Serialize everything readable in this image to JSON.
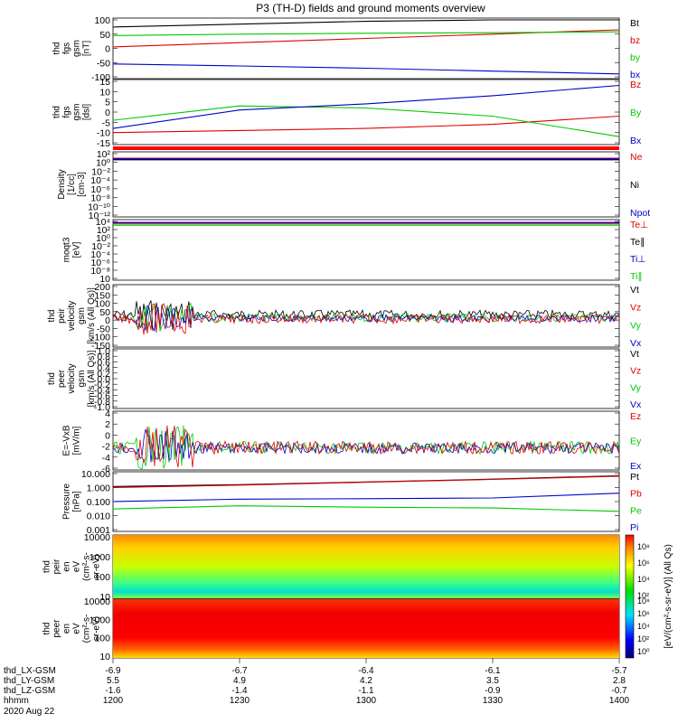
{
  "title": "P3 (TH-D) fields and ground moments overview",
  "colors": {
    "black": "#000000",
    "red": "#e00000",
    "green": "#00c800",
    "blue": "#0000c8"
  },
  "panels": [
    {
      "id": "fgs-gsm",
      "ylabel": [
        "thd",
        "fgs",
        "gsm",
        "[nT]"
      ],
      "ticks": [
        "100",
        "50",
        "0",
        "-50",
        "-100"
      ],
      "ylim": [
        -100,
        100
      ],
      "legend": [
        {
          "label": "Bt",
          "color": "black"
        },
        {
          "label": "bz",
          "color": "red"
        },
        {
          "label": "by",
          "color": "green"
        },
        {
          "label": "bx",
          "color": "blue"
        }
      ]
    },
    {
      "id": "fgs-dsl",
      "ylabel": [
        "thd",
        "fgs",
        "gsm",
        "[dsl]"
      ],
      "ticks": [
        "15",
        "10",
        "5",
        "0",
        "-5",
        "-10",
        "-15"
      ],
      "ylim": [
        -15,
        15
      ],
      "legend": [
        {
          "label": "Bz",
          "color": "red"
        },
        {
          "label": "By",
          "color": "green"
        },
        {
          "label": "Bx",
          "color": "blue"
        }
      ]
    },
    {
      "id": "density",
      "ylabel": [
        "Density",
        "[1/cc]",
        "[cm-3]"
      ],
      "ticks": [
        "10²",
        "10⁰",
        "10⁻²",
        "10⁻⁴",
        "10⁻⁶",
        "10⁻⁸",
        "10⁻¹⁰",
        "10⁻¹²"
      ],
      "legend": [
        {
          "label": "Ne",
          "color": "red"
        },
        {
          "label": "Ni",
          "color": "black"
        },
        {
          "label": "Npot",
          "color": "blue"
        }
      ]
    },
    {
      "id": "temp",
      "ylabel": [
        "moqt3",
        "[eV]"
      ],
      "ticks": [
        "10⁴",
        "10²",
        "10⁰",
        "10⁻²",
        "10⁻⁴",
        "10⁻⁶",
        "10⁻⁸",
        "10"
      ],
      "legend": [
        {
          "label": "Te⊥",
          "color": "red"
        },
        {
          "label": "Te∥",
          "color": "black"
        },
        {
          "label": "Ti⊥",
          "color": "blue"
        },
        {
          "label": "Ti∥",
          "color": "green"
        }
      ]
    },
    {
      "id": "peir-vel",
      "ylabel": [
        "thd",
        "peir",
        "velocity",
        "gsm",
        "[km/s (All Qs)]"
      ],
      "ticks": [
        "200",
        "150",
        "100",
        "50",
        "0",
        "-50",
        "-100",
        "-150"
      ],
      "ylim": [
        -150,
        200
      ],
      "legend": [
        {
          "label": "Vt",
          "color": "black"
        },
        {
          "label": "Vz",
          "color": "red"
        },
        {
          "label": "Vy",
          "color": "green"
        },
        {
          "label": "Vx",
          "color": "blue"
        }
      ]
    },
    {
      "id": "peer-vel",
      "ylabel": [
        "thd",
        "peer",
        "velocity",
        "gsm",
        "[km/s (All Qs)]"
      ],
      "ticks": [
        "1.0",
        "0.8",
        "0.6",
        "0.4",
        "0.2",
        "0.0",
        "-0.2",
        "-0.4",
        "-0.6",
        "-0.8",
        "-1.0"
      ],
      "ylim": [
        -1,
        1
      ],
      "legend": [
        {
          "label": "Vt",
          "color": "black"
        },
        {
          "label": "Vz",
          "color": "red"
        },
        {
          "label": "Vy",
          "color": "green"
        },
        {
          "label": "Vx",
          "color": "blue"
        }
      ]
    },
    {
      "id": "efield",
      "ylabel": [
        "E=-VxB",
        "[mV/m]"
      ],
      "ticks": [
        "4",
        "2",
        "0",
        "-2",
        "-4",
        "-6"
      ],
      "ylim": [
        -6,
        4
      ],
      "legend": [
        {
          "label": "Ez",
          "color": "red"
        },
        {
          "label": "Ey",
          "color": "green"
        },
        {
          "label": "Ex",
          "color": "blue"
        }
      ]
    },
    {
      "id": "pressure",
      "ylabel": [
        "Pressure",
        "[nPa]"
      ],
      "ticks": [
        "10.000",
        "1.000",
        "0.100",
        "0.010",
        "0.001"
      ],
      "legend": [
        {
          "label": "Pt",
          "color": "black"
        },
        {
          "label": "Pb",
          "color": "red"
        },
        {
          "label": "Pe",
          "color": "green"
        },
        {
          "label": "Pi",
          "color": "blue"
        }
      ]
    },
    {
      "id": "peir-eflux",
      "ylabel": [
        "thd",
        "peir",
        "en",
        "eV",
        "(cm²-s-",
        "sr-eV)"
      ],
      "ticks": [
        "10000",
        "1000",
        "100",
        "10"
      ]
    },
    {
      "id": "peer-eflux",
      "ylabel": [
        "thd",
        "peer",
        "en",
        "eV",
        "(cm²-s-",
        "sr-eV)"
      ],
      "ticks": [
        "10000",
        "1000",
        "100",
        "10"
      ]
    }
  ],
  "colorbar": {
    "upper_ticks": [
      "10⁸",
      "10⁶",
      "10⁴",
      "10²"
    ],
    "lower_ticks": [
      "10⁸",
      "10⁶",
      "10⁴",
      "10²",
      "10⁰"
    ],
    "label": "[eV/(cm²-s-sr-eV)]   (All Qs)"
  },
  "xaxis": {
    "rows": [
      {
        "name": "thd_LX-GSM",
        "values": [
          "-6.9",
          "-6.7",
          "-6.4",
          "-6.1",
          "-5.7"
        ]
      },
      {
        "name": "thd_LY-GSM",
        "values": [
          "5.5",
          "4.9",
          "4.2",
          "3.5",
          "2.8"
        ]
      },
      {
        "name": "thd_LZ-GSM",
        "values": [
          "-1.6",
          "-1.4",
          "-1.1",
          "-0.9",
          "-0.7"
        ]
      },
      {
        "name": "hhmm",
        "values": [
          "1200",
          "1230",
          "1300",
          "1330",
          "1400"
        ]
      }
    ],
    "date": "2020 Aug 22"
  },
  "chart_data": {
    "type": "line",
    "title": "P3 (TH-D) fields and ground moments overview",
    "x": [
      "1200",
      "1230",
      "1300",
      "1330",
      "1400"
    ],
    "xlabel": "hhmm",
    "series_fgs_gsm": [
      {
        "name": "Bt",
        "values": [
          75,
          85,
          95,
          100,
          100
        ]
      },
      {
        "name": "bz",
        "values": [
          5,
          20,
          35,
          50,
          65
        ]
      },
      {
        "name": "by",
        "values": [
          45,
          50,
          53,
          55,
          58
        ]
      },
      {
        "name": "bx",
        "values": [
          -55,
          -62,
          -70,
          -80,
          -90
        ]
      }
    ],
    "series_fgs_dsl": [
      {
        "name": "Bz",
        "values": [
          -10,
          -9,
          -8,
          -6,
          -2
        ]
      },
      {
        "name": "By",
        "values": [
          -4,
          3,
          2,
          -2,
          -12
        ]
      },
      {
        "name": "Bx",
        "values": [
          -8,
          1,
          4,
          8,
          13
        ]
      }
    ],
    "series_pressure": [
      {
        "name": "Pt",
        "values": [
          1.2,
          1.6,
          2.5,
          4.0,
          7.0
        ]
      },
      {
        "name": "Pb",
        "values": [
          1.0,
          1.5,
          2.4,
          3.8,
          6.5
        ]
      },
      {
        "name": "Pe",
        "values": [
          0.03,
          0.05,
          0.04,
          0.035,
          0.02
        ]
      },
      {
        "name": "Pi",
        "values": [
          0.1,
          0.15,
          0.16,
          0.18,
          0.4
        ]
      }
    ]
  }
}
